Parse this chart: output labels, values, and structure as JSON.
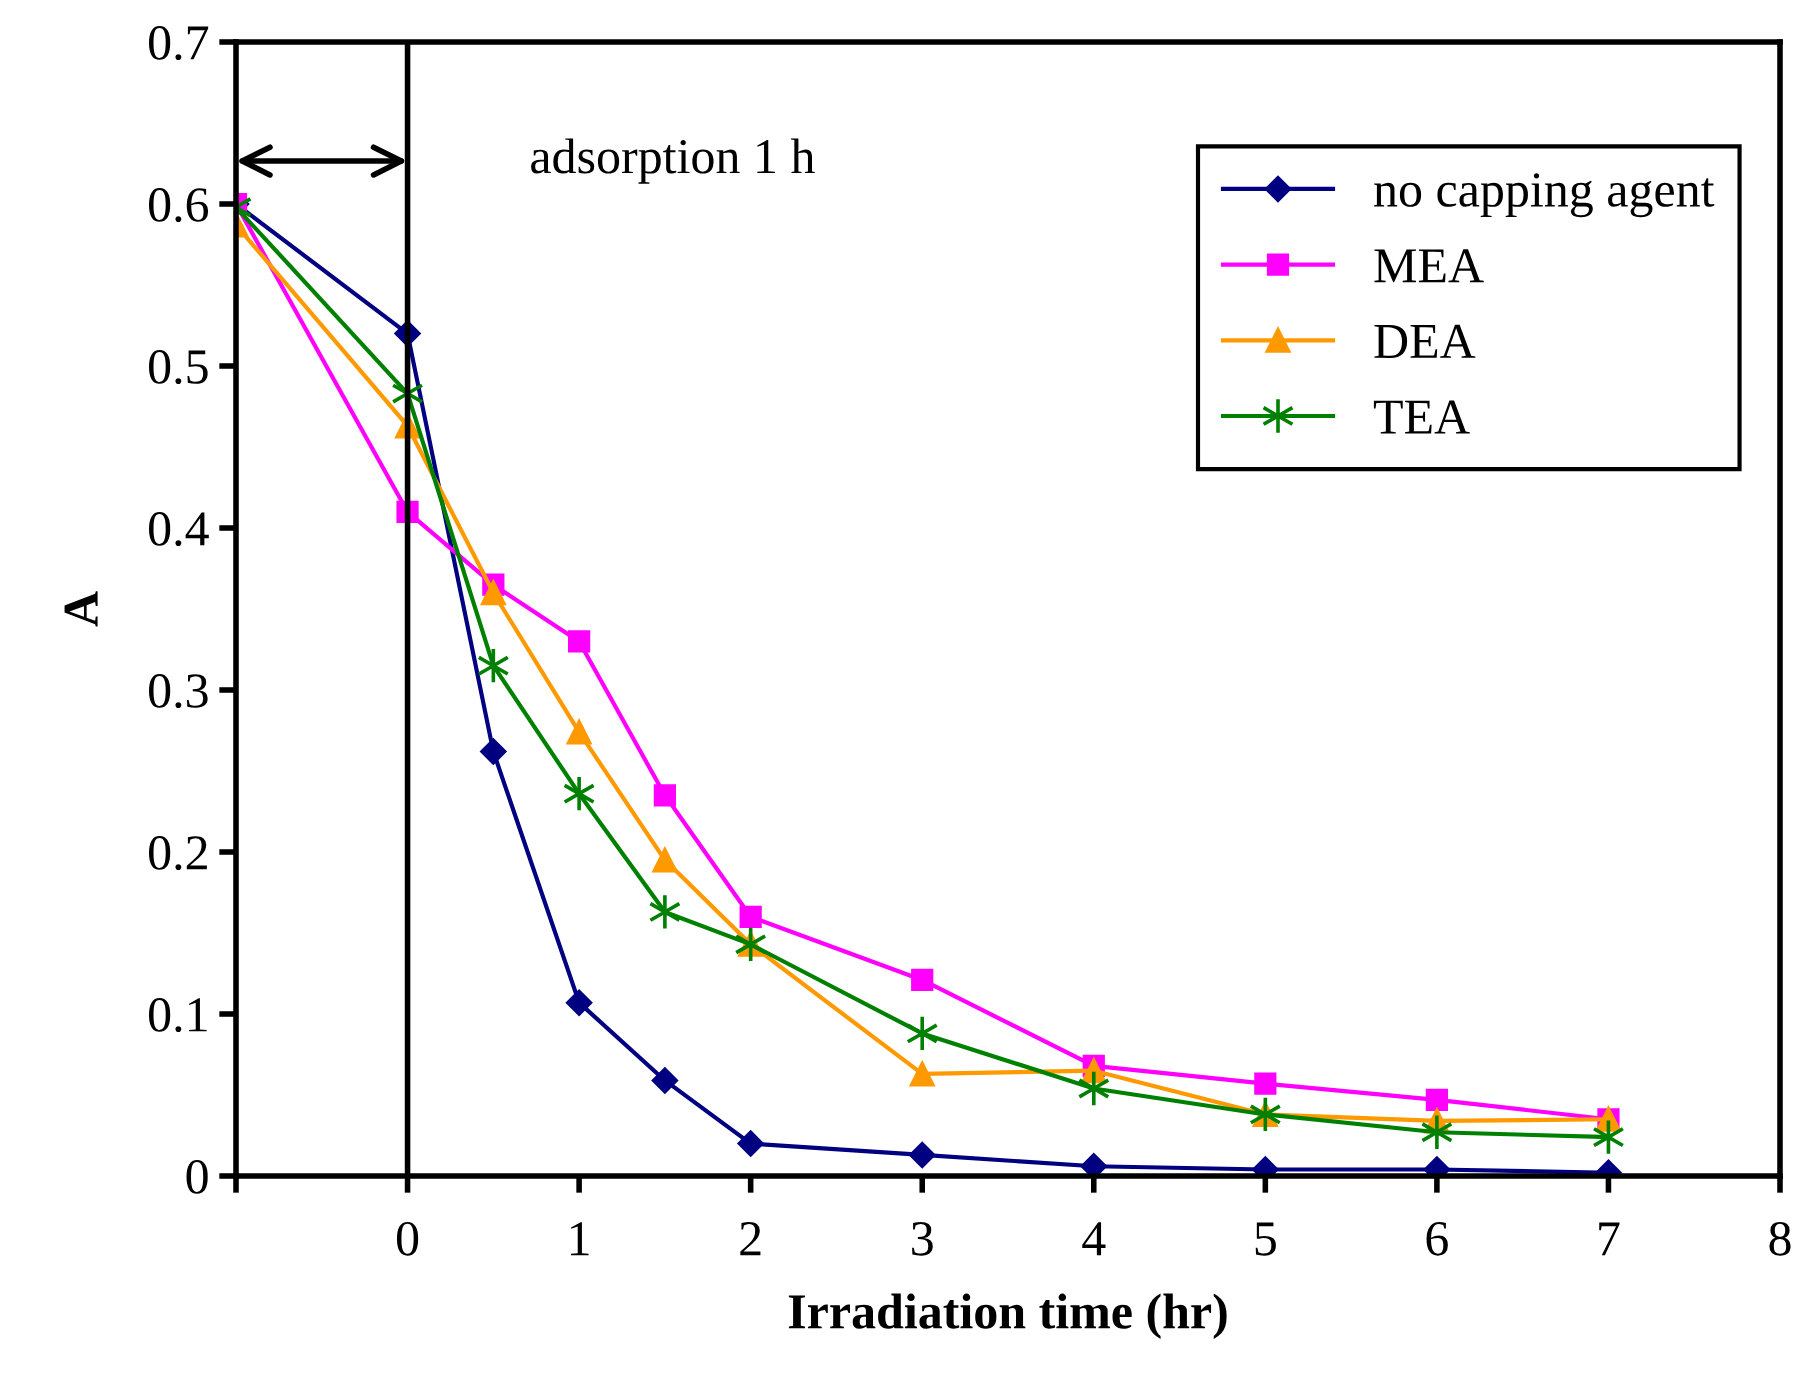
{
  "chart_data": {
    "type": "line",
    "xlabel": "Irradiation time (hr)",
    "ylabel": "A",
    "x": [
      -1,
      0,
      0.5,
      1,
      1.5,
      2,
      3,
      4,
      5,
      6,
      7
    ],
    "xlim": [
      -1,
      8
    ],
    "xticks": [
      {
        "value": -1,
        "label": null
      },
      0,
      1,
      2,
      3,
      4,
      5,
      6,
      7,
      8
    ],
    "ylim": [
      0,
      0.7
    ],
    "yticks": [
      0,
      0.1,
      0.2,
      0.3,
      0.4,
      0.5,
      0.6,
      0.7
    ],
    "grid": false,
    "legend": "top right",
    "ref_lines": [
      {
        "axis": "x",
        "value": 0,
        "color": "#000000"
      }
    ],
    "annotations": [
      "adsorption 1 h"
    ],
    "series": [
      {
        "name": "no capping agent",
        "color": "#000080",
        "marker": "diamond",
        "values": [
          0.6,
          0.52,
          0.262,
          0.107,
          0.059,
          0.02,
          0.013,
          0.006,
          0.004,
          0.004,
          0.002
        ]
      },
      {
        "name": "MEA",
        "color": "#ff00ff",
        "marker": "square",
        "values": [
          0.6,
          0.41,
          0.365,
          0.33,
          0.235,
          0.16,
          0.121,
          0.068,
          0.057,
          0.047,
          0.035
        ]
      },
      {
        "name": "DEA",
        "color": "#ff9900",
        "marker": "triangle",
        "values": [
          0.587,
          0.463,
          0.36,
          0.274,
          0.195,
          0.143,
          0.063,
          0.065,
          0.038,
          0.034,
          0.035
        ]
      },
      {
        "name": "TEA",
        "color": "#008000",
        "marker": "cross",
        "values": [
          0.598,
          0.483,
          0.315,
          0.236,
          0.163,
          0.143,
          0.088,
          0.054,
          0.038,
          0.027,
          0.024
        ]
      }
    ]
  }
}
